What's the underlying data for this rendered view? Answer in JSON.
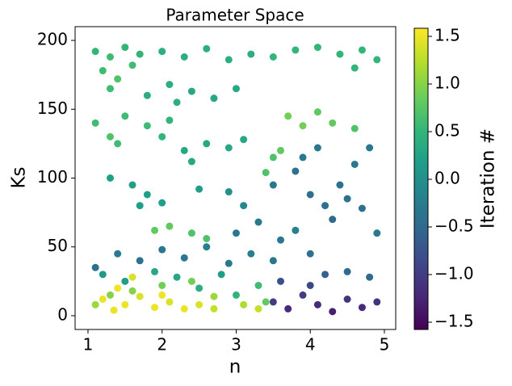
{
  "chart_data": {
    "type": "scatter",
    "title": "Parameter Space",
    "x_label": "n",
    "y_label": "Ks",
    "colorbar_label": "Iteration #",
    "colormap": "viridis",
    "xlim": [
      0.826,
      5.153
    ],
    "ylim": [
      -10,
      210
    ],
    "clim": [
      -1.576,
      1.585
    ],
    "xticks": [
      1,
      2,
      3,
      4,
      5
    ],
    "yticks": [
      0,
      50,
      100,
      150,
      200
    ],
    "cticks": [
      {
        "value": -1.5,
        "label": "−1.5"
      },
      {
        "value": -1,
        "label": "−1.0"
      },
      {
        "value": -0.5,
        "label": "−0.5"
      },
      {
        "value": 0,
        "label": "0.0"
      },
      0.5,
      {
        "value": 1,
        "label": "1.0"
      },
      1.5
    ],
    "x": [
      1.1,
      1.3,
      1.5,
      1.7,
      2.0,
      2.3,
      2.6,
      2.9,
      3.2,
      3.5,
      3.8,
      4.1,
      4.4,
      4.7,
      4.9,
      1.2,
      1.4,
      1.6,
      1.3,
      4.6,
      1.8,
      2.1,
      2.4,
      2.7,
      3.0,
      2.2,
      1.1,
      1.3,
      1.5,
      1.8,
      2.1,
      1.4,
      2.0,
      2.3,
      2.6,
      2.9,
      3.1,
      2.4,
      3.7,
      3.9,
      4.1,
      4.3,
      4.6,
      3.5,
      3.4,
      3.6,
      1.3,
      1.6,
      1.8,
      2.0,
      1.7,
      2.5,
      3.5,
      3.8,
      4.0,
      4.2,
      4.4,
      4.6,
      4.8,
      4.3,
      4.7,
      4.9,
      3.9,
      4.1,
      4.5,
      3.0,
      3.3,
      3.6,
      3.8,
      3.1,
      2.9,
      1.9,
      2.1,
      2.4,
      2.6,
      1.1,
      1.4,
      1.7,
      2.0,
      2.3,
      2.6,
      2.9,
      3.2,
      3.5,
      4.2,
      4.5,
      4.8,
      4.0,
      3.5,
      3.7,
      3.9,
      4.1,
      4.3,
      4.5,
      4.7,
      4.9,
      4.0,
      3.6,
      1.2,
      1.5,
      1.9,
      2.2,
      2.5,
      2.8,
      3.0,
      3.3,
      3.4,
      1.3,
      1.6,
      2.0,
      2.4,
      2.7,
      3.1,
      3.3,
      1.1,
      1.2,
      1.4,
      1.5,
      1.7,
      1.9,
      2.1,
      2.3,
      2.5,
      2.7,
      1.6,
      1.35,
      2.0
    ],
    "y": [
      192,
      188,
      195,
      190,
      192,
      188,
      194,
      186,
      190,
      188,
      193,
      195,
      190,
      193,
      186,
      178,
      172,
      182,
      165,
      180,
      160,
      168,
      163,
      158,
      165,
      155,
      140,
      130,
      145,
      138,
      142,
      125,
      130,
      120,
      125,
      122,
      128,
      112,
      145,
      138,
      148,
      140,
      136,
      115,
      104,
      120,
      100,
      95,
      88,
      82,
      80,
      92,
      95,
      105,
      88,
      80,
      95,
      110,
      122,
      70,
      78,
      60,
      115,
      122,
      85,
      60,
      68,
      55,
      62,
      80,
      90,
      62,
      65,
      60,
      56,
      35,
      45,
      40,
      48,
      42,
      50,
      38,
      45,
      40,
      30,
      32,
      28,
      45,
      10,
      5,
      15,
      8,
      3,
      12,
      6,
      10,
      22,
      25,
      30,
      25,
      32,
      28,
      20,
      30,
      15,
      22,
      10,
      15,
      18,
      22,
      25,
      14,
      8,
      5,
      8,
      12,
      20,
      8,
      14,
      6,
      10,
      5,
      8,
      5,
      28,
      4,
      15
    ],
    "c": [
      0.5,
      0.6,
      0.5,
      0.5,
      0.4,
      0.4,
      0.4,
      0.4,
      0.4,
      0.5,
      0.5,
      0.5,
      0.5,
      0.5,
      0.5,
      0.6,
      0.7,
      0.6,
      0.6,
      0.5,
      0.4,
      0.4,
      0.3,
      0.3,
      0.3,
      0.4,
      0.6,
      0.7,
      0.6,
      0.6,
      0.5,
      0.6,
      0.5,
      0.3,
      0.3,
      0.3,
      0.3,
      0.3,
      0.9,
      0.9,
      0.8,
      0.8,
      0.7,
      0.7,
      0.7,
      0.8,
      0.2,
      0.2,
      0.2,
      0.2,
      0.2,
      0.2,
      -0.3,
      -0.4,
      -0.4,
      -0.4,
      -0.4,
      -0.3,
      -0.3,
      -0.5,
      -0.4,
      -0.3,
      -0.3,
      -0.3,
      -0.4,
      -0.3,
      -0.3,
      -0.3,
      -0.2,
      -0.1,
      0.0,
      0.8,
      0.8,
      0.7,
      0.7,
      -0.4,
      -0.3,
      -0.4,
      -0.3,
      -0.3,
      -0.2,
      -0.3,
      -0.2,
      -0.3,
      -0.6,
      -0.5,
      -0.5,
      -0.4,
      -1.0,
      -1.2,
      -1.0,
      -1.2,
      -1.3,
      -1.1,
      -1.2,
      -1.1,
      -0.9,
      -0.8,
      0.1,
      0.2,
      0.3,
      0.3,
      0.4,
      0.2,
      0.5,
      0.6,
      0.8,
      1.0,
      1.0,
      0.9,
      0.9,
      1.1,
      1.2,
      1.3,
      1.1,
      1.5,
      1.5,
      1.5,
      1.4,
      1.5,
      1.4,
      1.5,
      1.4,
      1.3,
      1.4,
      1.5,
      1.5
    ]
  }
}
